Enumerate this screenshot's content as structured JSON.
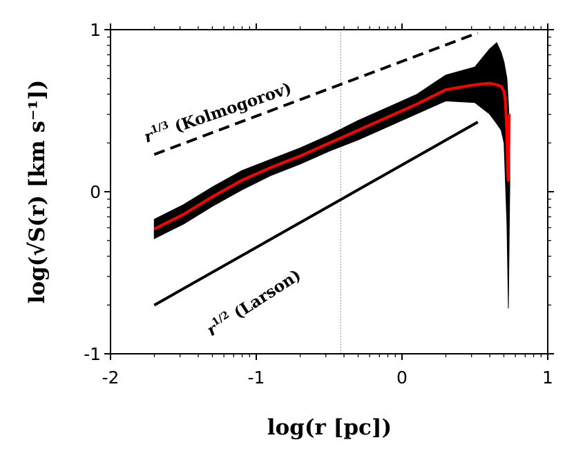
{
  "chart_data": {
    "type": "line",
    "xlabel": "log(r [pc])",
    "ylabel": "log(√S(r) [km s⁻¹])",
    "xlim": [
      -2,
      1
    ],
    "ylim": [
      -1,
      1
    ],
    "x_ticks": [
      -2,
      -1,
      0,
      1
    ],
    "x_tick_labels": [
      "-2",
      "-1",
      "0",
      "1"
    ],
    "y_ticks": [
      -1,
      0,
      1
    ],
    "y_tick_labels": [
      "-1",
      "0",
      "1"
    ],
    "grid": false,
    "log_minor_ticks": true,
    "vertical_reference_line": {
      "x": -0.42,
      "style": "dotted",
      "color": "#888888"
    },
    "series": [
      {
        "role": "mean",
        "color": "#ff0000",
        "x": [
          -1.7,
          -1.5,
          -1.3,
          -1.1,
          -0.9,
          -0.7,
          -0.5,
          -0.3,
          -0.1,
          0.1,
          0.3,
          0.5,
          0.6,
          0.65,
          0.68,
          0.7,
          0.71,
          0.72,
          0.725,
          0.73,
          0.735
        ],
        "y": [
          -0.23,
          -0.14,
          -0.03,
          0.07,
          0.15,
          0.22,
          0.3,
          0.38,
          0.46,
          0.54,
          0.63,
          0.66,
          0.67,
          0.66,
          0.65,
          0.62,
          0.55,
          0.35,
          0.1,
          0.07,
          0.48
        ]
      },
      {
        "role": "spread",
        "color": "#000000",
        "x": [
          -1.7,
          -1.5,
          -1.3,
          -1.1,
          -0.9,
          -0.7,
          -0.5,
          -0.3,
          -0.1,
          0.1,
          0.3,
          0.5,
          0.6,
          0.65,
          0.68,
          0.7,
          0.72,
          0.73,
          0.74
        ],
        "y_upper": [
          -0.17,
          -0.08,
          0.03,
          0.13,
          0.2,
          0.27,
          0.35,
          0.44,
          0.52,
          0.6,
          0.72,
          0.77,
          0.88,
          0.92,
          0.86,
          0.8,
          0.7,
          0.55,
          0.35
        ],
        "y_lower": [
          -0.29,
          -0.2,
          -0.09,
          0.01,
          0.1,
          0.17,
          0.25,
          0.32,
          0.4,
          0.48,
          0.56,
          0.55,
          0.48,
          0.42,
          0.38,
          0.3,
          -0.2,
          -0.72,
          0.05
        ]
      },
      {
        "role": "reference",
        "name": "r^{1/3} (Kolmogorov)",
        "style": "dashed",
        "color": "#000000",
        "x": [
          -1.7,
          0.52
        ],
        "y": [
          0.23,
          0.98
        ]
      },
      {
        "role": "reference",
        "name": "r^{1/2} (Larson)",
        "style": "solid",
        "color": "#000000",
        "x": [
          -1.7,
          0.52
        ],
        "y": [
          -0.7,
          0.43
        ]
      }
    ],
    "annotations": [
      {
        "id": "kolmogorov",
        "base": "r",
        "exponent": "1/3",
        "text": " (Kolmogorov)"
      },
      {
        "id": "larson",
        "base": "r",
        "exponent": "1/2",
        "text": " (Larson)"
      }
    ]
  }
}
